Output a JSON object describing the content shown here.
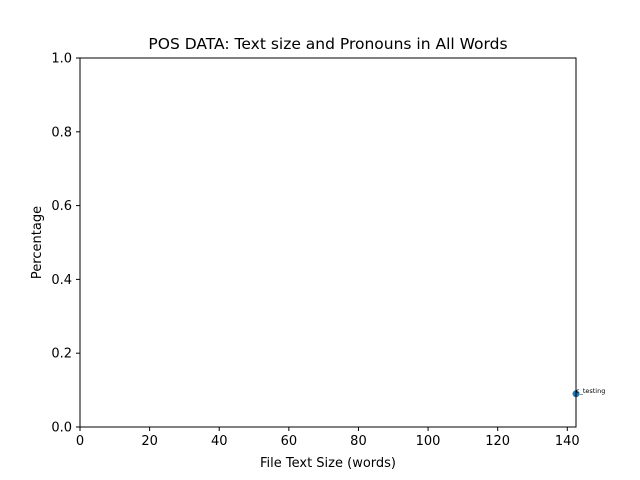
{
  "chart_data": {
    "type": "scatter",
    "title": "POS DATA: Text size and Pronouns in All Words",
    "xlabel": "File Text Size (words)",
    "ylabel": "Percentage",
    "xlim": [
      0,
      142.5
    ],
    "ylim": [
      0,
      1.0
    ],
    "x_ticks": [
      0,
      20,
      40,
      60,
      80,
      100,
      120,
      140
    ],
    "x_tick_labels": [
      "0",
      "20",
      "40",
      "60",
      "80",
      "100",
      "120",
      "140"
    ],
    "y_ticks": [
      0,
      0.2,
      0.4,
      0.6,
      0.8,
      1.0
    ],
    "y_tick_labels": [
      "0.0",
      "0.2",
      "0.4",
      "0.6",
      "0.8",
      "1.0"
    ],
    "grid": false,
    "point_color": "#1f77b4",
    "points": [
      {
        "x": 142.5,
        "y": 0.09,
        "label": "c_testing"
      }
    ]
  }
}
